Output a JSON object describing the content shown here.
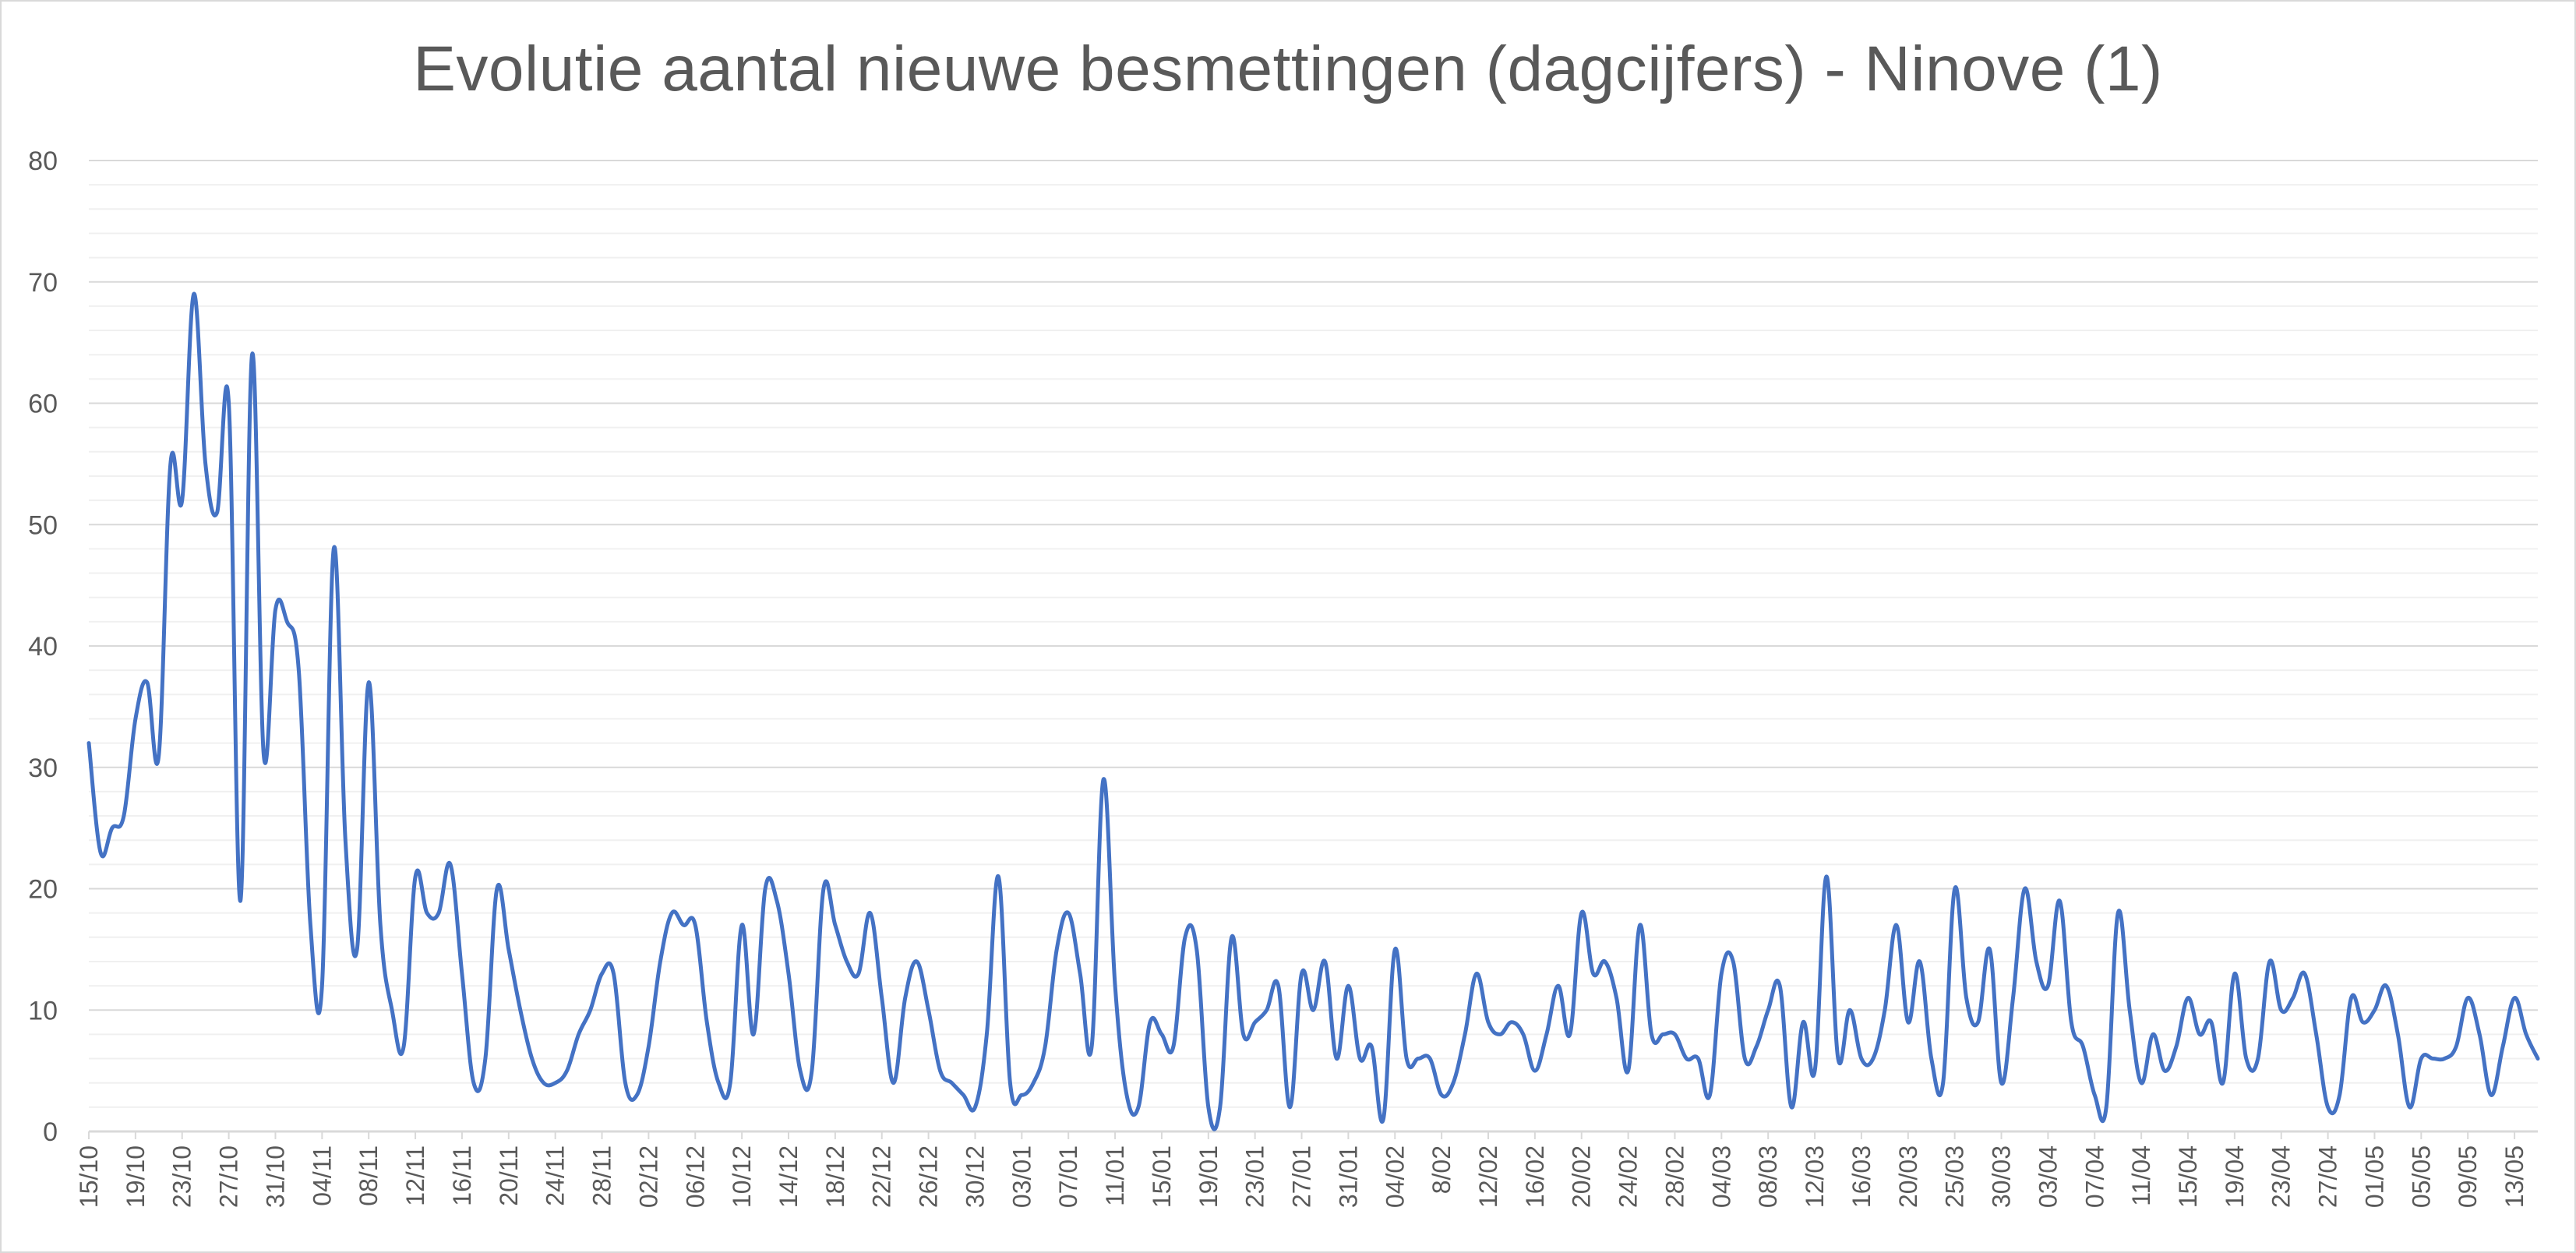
{
  "chart_data": {
    "type": "line",
    "title": "Evolutie aantal nieuwe besmettingen (dagcijfers) - Ninove (1)",
    "xlabel": "",
    "ylabel": "",
    "ylim": [
      0,
      80
    ],
    "yticks": [
      "0",
      "10",
      "20",
      "30",
      "40",
      "50",
      "60",
      "70",
      "80"
    ],
    "grid": true,
    "legend": "none",
    "colors": {
      "line": "#4472c4",
      "major_grid": "#d9d9d9",
      "minor_grid": "#f0f0f0",
      "text": "#595959"
    },
    "x_tick_labels": [
      "15/10",
      "19/10",
      "23/10",
      "27/10",
      "31/10",
      "04/11",
      "08/11",
      "12/11",
      "16/11",
      "20/11",
      "24/11",
      "28/11",
      "02/12",
      "06/12",
      "10/12",
      "14/12",
      "18/12",
      "22/12",
      "26/12",
      "30/12",
      "03/01",
      "07/01",
      "11/01",
      "15/01",
      "19/01",
      "23/01",
      "27/01",
      "31/01",
      "04/02",
      "8/02",
      "12/02",
      "16/02",
      "20/02",
      "24/02",
      "28/02",
      "04/03",
      "08/03",
      "12/03",
      "16/03",
      "20/03",
      "25/03",
      "30/03",
      "03/04",
      "07/04",
      "11/04",
      "15/04",
      "19/04",
      "23/04",
      "27/04",
      "01/05",
      "05/05",
      "09/05",
      "13/05"
    ],
    "series": [
      {
        "values": [
          32,
          23,
          25,
          26,
          34,
          37,
          31,
          55,
          52,
          69,
          55,
          51,
          60,
          19,
          64,
          31,
          43,
          42,
          38,
          17,
          12,
          48,
          24,
          15,
          37,
          17,
          10,
          7,
          21,
          18,
          18,
          22,
          13,
          4,
          6,
          20,
          15,
          10,
          6,
          4,
          4,
          5,
          8,
          10,
          13,
          13,
          4,
          3,
          7,
          14,
          18,
          17,
          17,
          9,
          4,
          4,
          17,
          8,
          20,
          19,
          13,
          5,
          5,
          20,
          17,
          14,
          13,
          18,
          11,
          4,
          11,
          14,
          10,
          5,
          4,
          3,
          2,
          8,
          21,
          4,
          3,
          4,
          7,
          15,
          18,
          13,
          7,
          29,
          12,
          3,
          2,
          9,
          8,
          7,
          16,
          15,
          2,
          2,
          16,
          8,
          9,
          10,
          12,
          2,
          13,
          10,
          14,
          6,
          12,
          6,
          7,
          1,
          15,
          6,
          6,
          6,
          3,
          4,
          8,
          13,
          9,
          8,
          9,
          8,
          5,
          8,
          12,
          8,
          18,
          13,
          14,
          11,
          5,
          17,
          8,
          8,
          8,
          6,
          6,
          3,
          13,
          14,
          6,
          7,
          10,
          12,
          2,
          9,
          5,
          21,
          6,
          10,
          6,
          6,
          10,
          17,
          9,
          14,
          6,
          4,
          20,
          11,
          9,
          15,
          4,
          11,
          20,
          14,
          12,
          19,
          9,
          7,
          3,
          2,
          18,
          10,
          4,
          8,
          5,
          7,
          11,
          8,
          9,
          4,
          13,
          6,
          6,
          14,
          10,
          11,
          13,
          8,
          2,
          3,
          11,
          9,
          10,
          12,
          8,
          2,
          6,
          6,
          6,
          7,
          11,
          8,
          3,
          7,
          11,
          8,
          6
        ]
      }
    ]
  }
}
